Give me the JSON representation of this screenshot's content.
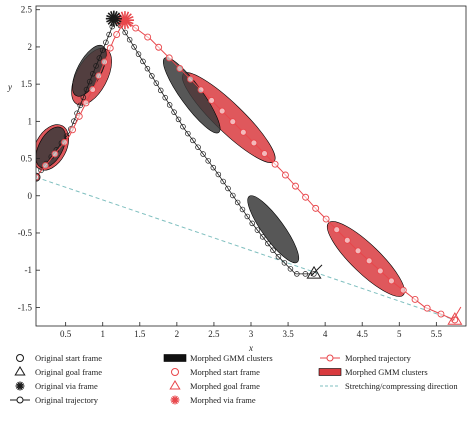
{
  "chart_data": {
    "type": "line",
    "title": "",
    "xlabel": "x",
    "ylabel": "y",
    "xlim": [
      0.1,
      5.9
    ],
    "ylim": [
      -1.75,
      2.55
    ],
    "x_ticks": [
      0.5,
      1,
      1.5,
      2,
      2.5,
      3,
      3.5,
      4,
      4.5,
      5,
      5.5
    ],
    "y_ticks": [
      -1.5,
      -1,
      -0.5,
      0,
      0.5,
      1,
      1.5,
      2,
      2.5
    ],
    "grid": false,
    "legend_placement": "bottom",
    "colors": {
      "original": "#1a1a1a",
      "morphed": "#e8464b",
      "morphed_cluster_fill": "#d93b3f",
      "original_cluster_fill": "#3a3a3a",
      "stretch_direction": "#7fbfbf"
    },
    "series": [
      {
        "name": "Original trajectory",
        "x": [
          0.1,
          0.55,
          0.85,
          1.1,
          1.17,
          1.3,
          1.7,
          2.1,
          2.55,
          3.0,
          3.35,
          3.6,
          3.85
        ],
        "y": [
          0.25,
          0.85,
          1.6,
          2.2,
          2.38,
          2.2,
          1.55,
          0.9,
          0.3,
          -0.35,
          -0.8,
          -1.05,
          -1.05
        ]
      },
      {
        "name": "Morphed trajectory",
        "x": [
          0.1,
          0.55,
          0.9,
          1.15,
          1.3,
          1.65,
          2.2,
          2.8,
          3.4,
          3.9,
          4.4,
          4.9,
          5.35,
          5.75
        ],
        "y": [
          0.25,
          0.8,
          1.5,
          2.1,
          2.36,
          2.1,
          1.55,
          0.95,
          0.35,
          -0.2,
          -0.7,
          -1.15,
          -1.5,
          -1.67
        ]
      },
      {
        "name": "Stretching/compressing direction",
        "x": [
          0.1,
          5.75
        ],
        "y": [
          0.25,
          -1.67
        ]
      }
    ],
    "original_gmm_clusters": [
      {
        "cx": 0.3,
        "cy": 0.65,
        "angle_deg": 62,
        "rx": 0.3,
        "ry": 0.1
      },
      {
        "cx": 0.82,
        "cy": 1.68,
        "angle_deg": 62,
        "rx": 0.38,
        "ry": 0.1
      },
      {
        "cx": 2.2,
        "cy": 1.35,
        "angle_deg": -54,
        "rx": 0.62,
        "ry": 0.09
      },
      {
        "cx": 3.3,
        "cy": -0.45,
        "angle_deg": -54,
        "rx": 0.55,
        "ry": 0.09
      }
    ],
    "morphed_gmm_clusters": [
      {
        "cx": 0.3,
        "cy": 0.65,
        "angle_deg": 62,
        "rx": 0.33,
        "ry": 0.13
      },
      {
        "cx": 0.85,
        "cy": 1.6,
        "angle_deg": 62,
        "rx": 0.42,
        "ry": 0.13
      },
      {
        "cx": 2.7,
        "cy": 1.05,
        "angle_deg": -44,
        "rx": 0.85,
        "ry": 0.12
      },
      {
        "cx": 4.55,
        "cy": -0.85,
        "angle_deg": -44,
        "rx": 0.7,
        "ry": 0.12
      }
    ],
    "frames": {
      "original_start": {
        "x": 0.1,
        "y": 0.25
      },
      "original_via": {
        "x": 1.15,
        "y": 2.38
      },
      "original_goal": {
        "x": 3.85,
        "y": -1.05
      },
      "morphed_start": {
        "x": 0.1,
        "y": 0.25
      },
      "morphed_via": {
        "x": 1.3,
        "y": 2.36
      },
      "morphed_goal": {
        "x": 5.75,
        "y": -1.67
      }
    },
    "legend": [
      {
        "label": "Original start frame",
        "symbol": "circle-open"
      },
      {
        "label": "Original goal frame",
        "symbol": "triangle-open"
      },
      {
        "label": "Original via frame",
        "symbol": "star-black"
      },
      {
        "label": "Original trajectory",
        "symbol": "line-circle-black"
      },
      {
        "label": "Morphed GMM clusters",
        "symbol": "black-ellipse-patch"
      },
      {
        "label": "Morphed start frame",
        "symbol": "circle-red"
      },
      {
        "label": "Morphed goal frame",
        "symbol": "triangle-red"
      },
      {
        "label": "Morphed via frame",
        "symbol": "star-red"
      },
      {
        "label": "Morphed trajectory",
        "symbol": "line-circle-red"
      },
      {
        "label": "Morphed GMM clusters",
        "symbol": "red-ellipse-patch"
      },
      {
        "label": "Stretching/compressing direction",
        "symbol": "dashed-teal"
      }
    ]
  }
}
